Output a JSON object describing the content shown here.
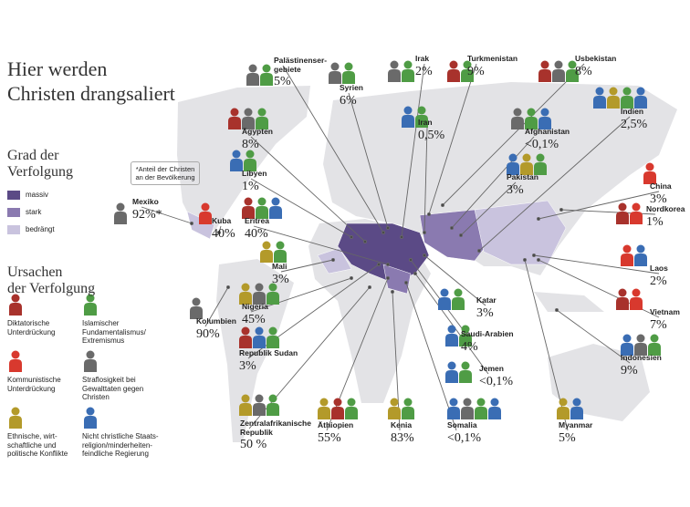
{
  "title": "Hier werden\nChristen drangsaliert",
  "degree_legend": {
    "title": "Grad der\nVerfolgung",
    "items": [
      {
        "label": "massiv",
        "color": "#5b4a86"
      },
      {
        "label": "stark",
        "color": "#8a7ab0"
      },
      {
        "label": "bedrängt",
        "color": "#c9c3de"
      }
    ]
  },
  "note": "*Anteil der Christen\nan der Bevölkerung",
  "cause_legend": {
    "title": "Ursachen\nder Verfolgung",
    "items": [
      {
        "label": "Diktatorische\nUnterdrückung",
        "color": "#a8322c"
      },
      {
        "label": "Islamischer\nFundamentalismus/\nExtremismus",
        "color": "#4f9c45"
      },
      {
        "label": "Kommunistische\nUnterdrückung",
        "color": "#d8392e"
      },
      {
        "label": "Straflosigkeit bei\nGewalttaten gegen\nChristen",
        "color": "#6a6a6a"
      },
      {
        "label": "Ethnische, wirt-\nschaftliche und\npolitische Konflikte",
        "color": "#b39a2a"
      },
      {
        "label": "Nicht christliche Staats-\nreligion/minderheiten-\nfeindliche Regierung",
        "color": "#3a6db4"
      }
    ]
  },
  "countries": [
    {
      "name": "Palästinenser-\ngebiete",
      "value": "5%",
      "causes": [
        3,
        1
      ]
    },
    {
      "name": "Syrien",
      "value": "6%",
      "causes": [
        3,
        1
      ]
    },
    {
      "name": "Irak",
      "value": "2%",
      "causes": [
        3,
        1
      ]
    },
    {
      "name": "Turkmenistan",
      "value": "9%",
      "causes": [
        0,
        1
      ]
    },
    {
      "name": "Usbekistan",
      "value": "8%",
      "causes": [
        0,
        3,
        1
      ]
    },
    {
      "name": "Ägypten",
      "value": "8%",
      "causes": [
        0,
        3,
        1
      ]
    },
    {
      "name": "Iran",
      "value": "0,5%",
      "causes": [
        5,
        1
      ]
    },
    {
      "name": "Afghanistan",
      "value": "<0,1%",
      "causes": [
        3,
        1,
        5
      ]
    },
    {
      "name": "Indien",
      "value": "2,5%",
      "causes": [
        5,
        4,
        1,
        5
      ]
    },
    {
      "name": "Libyen",
      "value": "1%",
      "causes": [
        5,
        1
      ]
    },
    {
      "name": "Pakistan",
      "value": "3%",
      "causes": [
        5,
        4,
        1
      ]
    },
    {
      "name": "China",
      "value": "3%",
      "causes": [
        2
      ]
    },
    {
      "name": "Mexiko",
      "value": "92%*",
      "causes": [
        3
      ]
    },
    {
      "name": "Kuba",
      "value": "40%",
      "causes": [
        2
      ]
    },
    {
      "name": "Eritrea",
      "value": "40%",
      "causes": [
        0,
        1,
        5
      ]
    },
    {
      "name": "Nordkorea",
      "value": "1%",
      "causes": [
        0,
        2
      ]
    },
    {
      "name": "Mali",
      "value": "3%",
      "causes": [
        4,
        1
      ]
    },
    {
      "name": "Laos",
      "value": "2%",
      "causes": [
        2,
        5
      ]
    },
    {
      "name": "Katar",
      "value": "3%",
      "causes": [
        5,
        1
      ]
    },
    {
      "name": "Vietnam",
      "value": "7%",
      "causes": [
        0,
        2
      ]
    },
    {
      "name": "Nigeria",
      "value": "45%",
      "causes": [
        4,
        3,
        1
      ]
    },
    {
      "name": "Kolumbien",
      "value": "90%",
      "causes": [
        3
      ]
    },
    {
      "name": "Saudi-Arabien",
      "value": "4%",
      "causes": [
        5,
        1
      ]
    },
    {
      "name": "Republik Sudan",
      "value": "3%",
      "causes": [
        0,
        5,
        1
      ]
    },
    {
      "name": "Indonesien",
      "value": "9%",
      "causes": [
        5,
        3,
        1
      ]
    },
    {
      "name": "Jemen",
      "value": "<0,1%",
      "causes": [
        5,
        1
      ]
    },
    {
      "name": "Zentralafrikanische\nRepublik",
      "value": "50 %",
      "causes": [
        4,
        3,
        1
      ]
    },
    {
      "name": "Äthiopien",
      "value": "55%",
      "causes": [
        4,
        0,
        1
      ]
    },
    {
      "name": "Kenia",
      "value": "83%",
      "causes": [
        4,
        1
      ]
    },
    {
      "name": "Somalia",
      "value": "<0,1%",
      "causes": [
        5,
        3,
        1,
        5
      ]
    },
    {
      "name": "Myanmar",
      "value": "5%",
      "causes": [
        4,
        5
      ]
    }
  ]
}
